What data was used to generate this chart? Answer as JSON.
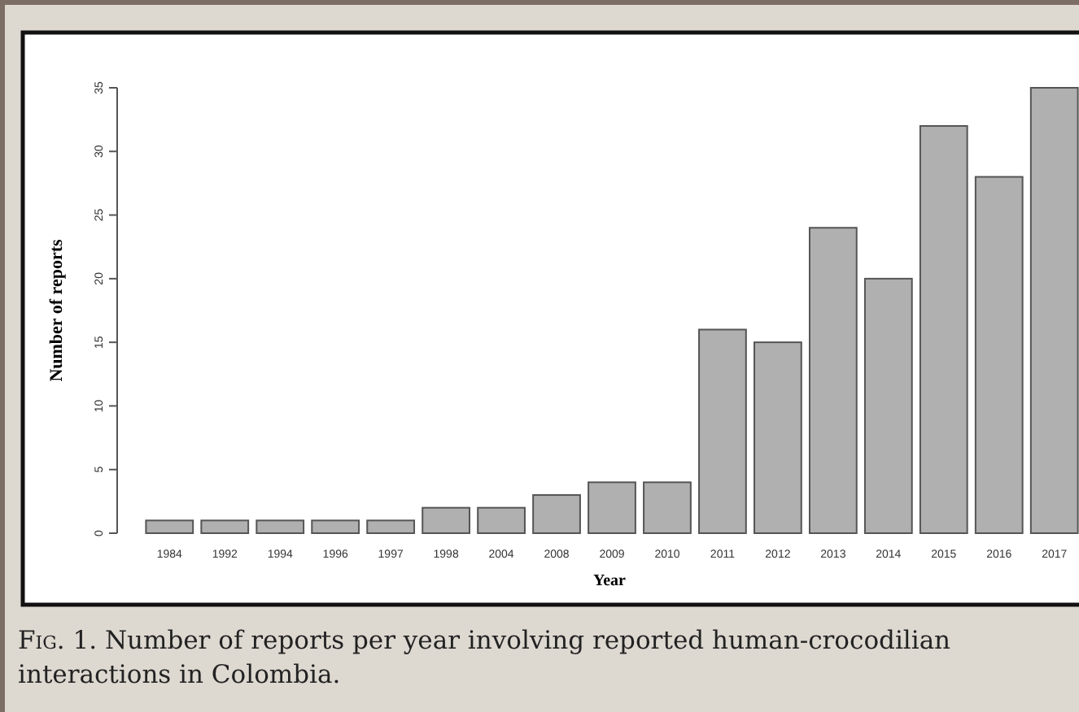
{
  "chart_data": {
    "type": "bar",
    "xlabel": "Year",
    "ylabel": "Number of reports",
    "categories": [
      "1984",
      "1992",
      "1994",
      "1996",
      "1997",
      "1998",
      "2004",
      "2008",
      "2009",
      "2010",
      "2011",
      "2012",
      "2013",
      "2014",
      "2015",
      "2016",
      "2017"
    ],
    "values": [
      1,
      1,
      1,
      1,
      1,
      2,
      2,
      3,
      4,
      4,
      16,
      15,
      24,
      20,
      32,
      28,
      35
    ],
    "color": "#b0b0b0",
    "ylim": [
      0,
      35
    ],
    "yticks": [
      0,
      5,
      10,
      15,
      20,
      25,
      30,
      35
    ],
    "grid": false,
    "annotations": [
      "Fig. 1. Number of reports per year involving reported human-crocodilian interactions in Colombia."
    ]
  }
}
